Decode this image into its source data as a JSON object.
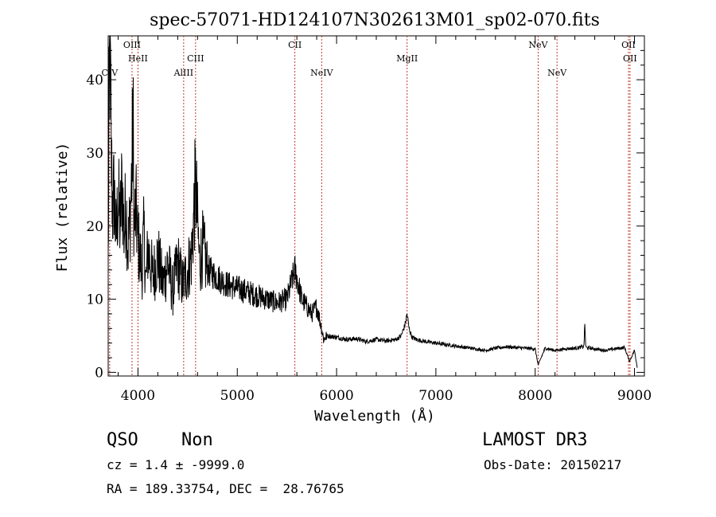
{
  "chart_data": {
    "type": "line",
    "title": "spec-57071-HD124107N302613M01_sp02-070.fits",
    "xlabel": "Wavelength (Å)",
    "ylabel": "Flux (relative)",
    "xlim": [
      3700,
      9100
    ],
    "ylim": [
      -0.5,
      46
    ],
    "x_ticks": [
      4000,
      5000,
      6000,
      7000,
      8000,
      9000
    ],
    "y_ticks": [
      0,
      10,
      20,
      30,
      40
    ],
    "x_tick_labels": [
      "4000",
      "5000",
      "6000",
      "7000",
      "8000",
      "9000"
    ],
    "y_tick_labels": [
      "0",
      "10",
      "20",
      "30",
      "40"
    ],
    "emission_lines": [
      {
        "name": "CIV",
        "wavelength": 3715,
        "row": 3
      },
      {
        "name": "OIII",
        "wavelength": 3940,
        "row": 1
      },
      {
        "name": "HeII",
        "wavelength": 4000,
        "row": 2
      },
      {
        "name": "AlIII",
        "wavelength": 4460,
        "row": 3
      },
      {
        "name": "CIII",
        "wavelength": 4580,
        "row": 2
      },
      {
        "name": "CII",
        "wavelength": 5580,
        "row": 1
      },
      {
        "name": "NeIV",
        "wavelength": 5850,
        "row": 3
      },
      {
        "name": "MgII",
        "wavelength": 6710,
        "row": 2
      },
      {
        "name": "NeV",
        "wavelength": 8030,
        "row": 1
      },
      {
        "name": "NeV",
        "wavelength": 8220,
        "row": 3
      },
      {
        "name": "OII",
        "wavelength": 8940,
        "row": 1
      },
      {
        "name": "OII",
        "wavelength": 8955,
        "row": 2
      }
    ],
    "series": [
      {
        "name": "flux",
        "x": [
          3700,
          3712,
          3720,
          3730,
          3745,
          3760,
          3780,
          3800,
          3820,
          3840,
          3860,
          3880,
          3900,
          3920,
          3940,
          3950,
          3960,
          3980,
          4000,
          4020,
          4040,
          4060,
          4080,
          4100,
          4150,
          4200,
          4250,
          4300,
          4350,
          4400,
          4450,
          4500,
          4540,
          4560,
          4580,
          4600,
          4620,
          4650,
          4700,
          4800,
          4900,
          5000,
          5100,
          5200,
          5300,
          5400,
          5500,
          5580,
          5650,
          5700,
          5750,
          5800,
          5850,
          5870,
          5900,
          6000,
          6100,
          6200,
          6300,
          6400,
          6500,
          6600,
          6650,
          6690,
          6710,
          6730,
          6760,
          6800,
          6900,
          7000,
          7100,
          7200,
          7300,
          7400,
          7500,
          7600,
          7700,
          7800,
          7900,
          8000,
          8030,
          8100,
          8200,
          8300,
          8400,
          8490,
          8500,
          8510,
          8600,
          8700,
          8800,
          8900,
          8950,
          9000,
          9030
        ],
        "y": [
          15,
          40,
          45,
          30,
          22,
          25,
          18,
          24,
          20,
          26,
          19,
          23,
          17,
          21,
          28,
          35,
          20,
          22,
          18,
          16,
          14,
          19,
          12,
          17,
          13,
          16,
          12,
          15,
          11,
          15,
          12,
          14,
          16,
          21,
          26,
          20,
          15,
          17,
          14,
          13,
          12,
          11.5,
          11,
          10.5,
          10,
          9.5,
          10,
          14,
          10,
          9,
          8,
          9,
          6,
          4.5,
          5,
          4.8,
          4.5,
          4.6,
          4.2,
          4.5,
          4.3,
          4.5,
          5,
          6.5,
          8,
          6,
          4.8,
          4.5,
          4.2,
          4.0,
          3.8,
          3.6,
          3.4,
          3.2,
          3.0,
          3.3,
          3.5,
          3.4,
          3.3,
          3.2,
          1,
          3.3,
          3.0,
          3.2,
          3.3,
          3.5,
          6.5,
          3.4,
          3.2,
          3.0,
          3.2,
          3.4,
          1.5,
          3,
          0.5
        ]
      }
    ]
  },
  "info": {
    "class": "QSO",
    "subclass": "Non",
    "survey": "LAMOST DR3",
    "cz": "cz = 1.4 ± -9999.0",
    "obs_date": "Obs-Date: 20150217",
    "radec": "RA = 189.33754, DEC =  28.76765"
  },
  "colors": {
    "line_marker": "#c0392b",
    "spectrum": "#000000"
  }
}
